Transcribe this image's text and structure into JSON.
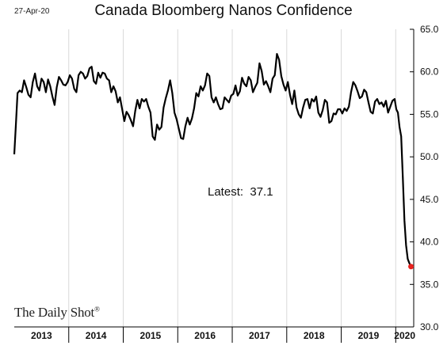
{
  "date_stamp": "27-Apr-20",
  "title": "Canada Bloomberg Nanos Confidence",
  "latest_label": "Latest:  37.1",
  "brand": "The Daily Shot",
  "brand_mark": "®",
  "colors": {
    "line": "#000000",
    "last_point": "#e8231f",
    "grid": "#d9d9d9",
    "axis": "#000000"
  },
  "chart_data": {
    "type": "line",
    "title": "Canada Bloomberg Nanos Confidence",
    "xlabel": "",
    "ylabel": "",
    "ylim": [
      30,
      65
    ],
    "y_ticks": [
      "30.0",
      "35.0",
      "40.0",
      "45.0",
      "50.0",
      "55.0",
      "60.0",
      "65.0"
    ],
    "x_range": [
      2013.0,
      2020.33
    ],
    "year_labels": [
      "2013",
      "2014",
      "2015",
      "2016",
      "2017",
      "2018",
      "2019",
      "2020"
    ],
    "grid": "vertical gridlines at year boundaries",
    "series": [
      {
        "values": [
          [
            2013.0,
            50.3
          ],
          [
            2013.03,
            53.8
          ],
          [
            2013.06,
            57.5
          ],
          [
            2013.1,
            57.8
          ],
          [
            2013.14,
            57.6
          ],
          [
            2013.18,
            59.0
          ],
          [
            2013.22,
            58.2
          ],
          [
            2013.26,
            57.3
          ],
          [
            2013.3,
            57.0
          ],
          [
            2013.34,
            58.8
          ],
          [
            2013.38,
            59.8
          ],
          [
            2013.42,
            58.3
          ],
          [
            2013.46,
            57.8
          ],
          [
            2013.5,
            59.2
          ],
          [
            2013.54,
            58.8
          ],
          [
            2013.58,
            57.6
          ],
          [
            2013.62,
            59.1
          ],
          [
            2013.66,
            58.3
          ],
          [
            2013.7,
            57.1
          ],
          [
            2013.74,
            56.1
          ],
          [
            2013.78,
            58.2
          ],
          [
            2013.82,
            59.4
          ],
          [
            2013.86,
            59.0
          ],
          [
            2013.9,
            58.5
          ],
          [
            2013.94,
            58.4
          ],
          [
            2013.98,
            58.8
          ],
          [
            2014.02,
            59.6
          ],
          [
            2014.06,
            59.2
          ],
          [
            2014.1,
            58.0
          ],
          [
            2014.14,
            57.6
          ],
          [
            2014.18,
            59.6
          ],
          [
            2014.22,
            60.0
          ],
          [
            2014.26,
            59.8
          ],
          [
            2014.3,
            59.2
          ],
          [
            2014.34,
            59.5
          ],
          [
            2014.38,
            60.4
          ],
          [
            2014.42,
            60.6
          ],
          [
            2014.46,
            58.9
          ],
          [
            2014.5,
            58.6
          ],
          [
            2014.54,
            59.9
          ],
          [
            2014.58,
            59.3
          ],
          [
            2014.62,
            59.9
          ],
          [
            2014.66,
            59.8
          ],
          [
            2014.7,
            59.2
          ],
          [
            2014.74,
            59.0
          ],
          [
            2014.78,
            57.6
          ],
          [
            2014.82,
            58.3
          ],
          [
            2014.86,
            57.7
          ],
          [
            2014.9,
            56.4
          ],
          [
            2014.94,
            57.0
          ],
          [
            2014.98,
            55.6
          ],
          [
            2015.02,
            54.2
          ],
          [
            2015.06,
            55.3
          ],
          [
            2015.1,
            54.9
          ],
          [
            2015.14,
            54.3
          ],
          [
            2015.18,
            53.6
          ],
          [
            2015.22,
            55.4
          ],
          [
            2015.26,
            56.7
          ],
          [
            2015.3,
            55.7
          ],
          [
            2015.34,
            56.8
          ],
          [
            2015.38,
            56.5
          ],
          [
            2015.42,
            56.8
          ],
          [
            2015.46,
            55.9
          ],
          [
            2015.5,
            55.2
          ],
          [
            2015.54,
            52.4
          ],
          [
            2015.58,
            52.0
          ],
          [
            2015.62,
            53.8
          ],
          [
            2015.66,
            53.2
          ],
          [
            2015.7,
            53.5
          ],
          [
            2015.74,
            55.8
          ],
          [
            2015.78,
            56.9
          ],
          [
            2015.82,
            57.8
          ],
          [
            2015.86,
            59.0
          ],
          [
            2015.9,
            57.5
          ],
          [
            2015.94,
            55.2
          ],
          [
            2015.98,
            54.4
          ],
          [
            2016.02,
            53.3
          ],
          [
            2016.06,
            52.2
          ],
          [
            2016.1,
            52.1
          ],
          [
            2016.14,
            53.6
          ],
          [
            2016.18,
            54.6
          ],
          [
            2016.22,
            53.8
          ],
          [
            2016.26,
            54.5
          ],
          [
            2016.3,
            55.7
          ],
          [
            2016.34,
            57.5
          ],
          [
            2016.38,
            57.1
          ],
          [
            2016.42,
            58.3
          ],
          [
            2016.46,
            57.8
          ],
          [
            2016.5,
            58.4
          ],
          [
            2016.54,
            59.8
          ],
          [
            2016.58,
            59.5
          ],
          [
            2016.62,
            57.0
          ],
          [
            2016.66,
            56.4
          ],
          [
            2016.7,
            57.0
          ],
          [
            2016.74,
            56.2
          ],
          [
            2016.78,
            55.6
          ],
          [
            2016.82,
            55.7
          ],
          [
            2016.86,
            57.0
          ],
          [
            2016.9,
            56.7
          ],
          [
            2016.94,
            56.4
          ],
          [
            2016.98,
            57.2
          ],
          [
            2017.02,
            57.4
          ],
          [
            2017.06,
            58.4
          ],
          [
            2017.1,
            57.2
          ],
          [
            2017.14,
            57.7
          ],
          [
            2017.18,
            59.3
          ],
          [
            2017.22,
            58.6
          ],
          [
            2017.26,
            58.3
          ],
          [
            2017.3,
            59.4
          ],
          [
            2017.34,
            59.0
          ],
          [
            2017.38,
            57.6
          ],
          [
            2017.42,
            58.2
          ],
          [
            2017.46,
            58.7
          ],
          [
            2017.5,
            61.0
          ],
          [
            2017.54,
            60.1
          ],
          [
            2017.58,
            58.5
          ],
          [
            2017.62,
            58.9
          ],
          [
            2017.66,
            58.3
          ],
          [
            2017.7,
            57.6
          ],
          [
            2017.74,
            59.2
          ],
          [
            2017.78,
            59.6
          ],
          [
            2017.82,
            62.1
          ],
          [
            2017.86,
            61.4
          ],
          [
            2017.9,
            59.5
          ],
          [
            2017.94,
            58.5
          ],
          [
            2017.98,
            57.8
          ],
          [
            2018.02,
            58.8
          ],
          [
            2018.06,
            57.3
          ],
          [
            2018.1,
            56.2
          ],
          [
            2018.14,
            57.8
          ],
          [
            2018.18,
            55.8
          ],
          [
            2018.22,
            55.0
          ],
          [
            2018.26,
            54.6
          ],
          [
            2018.3,
            55.8
          ],
          [
            2018.34,
            56.7
          ],
          [
            2018.38,
            56.8
          ],
          [
            2018.42,
            55.7
          ],
          [
            2018.46,
            56.8
          ],
          [
            2018.5,
            56.5
          ],
          [
            2018.54,
            57.1
          ],
          [
            2018.58,
            55.2
          ],
          [
            2018.62,
            54.7
          ],
          [
            2018.66,
            55.5
          ],
          [
            2018.7,
            56.7
          ],
          [
            2018.74,
            56.4
          ],
          [
            2018.78,
            54.0
          ],
          [
            2018.82,
            54.2
          ],
          [
            2018.86,
            55.1
          ],
          [
            2018.9,
            55.0
          ],
          [
            2018.94,
            55.6
          ],
          [
            2018.98,
            55.6
          ],
          [
            2019.02,
            55.1
          ],
          [
            2019.06,
            55.7
          ],
          [
            2019.1,
            55.4
          ],
          [
            2019.14,
            55.9
          ],
          [
            2019.18,
            57.6
          ],
          [
            2019.22,
            58.8
          ],
          [
            2019.26,
            58.4
          ],
          [
            2019.3,
            57.7
          ],
          [
            2019.34,
            56.9
          ],
          [
            2019.38,
            57.1
          ],
          [
            2019.42,
            57.9
          ],
          [
            2019.46,
            57.6
          ],
          [
            2019.5,
            56.4
          ],
          [
            2019.54,
            55.3
          ],
          [
            2019.58,
            55.1
          ],
          [
            2019.62,
            56.5
          ],
          [
            2019.66,
            56.8
          ],
          [
            2019.7,
            56.2
          ],
          [
            2019.74,
            56.4
          ],
          [
            2019.78,
            55.9
          ],
          [
            2019.82,
            56.6
          ],
          [
            2019.86,
            55.2
          ],
          [
            2019.9,
            55.9
          ],
          [
            2019.94,
            56.6
          ],
          [
            2019.98,
            56.8
          ],
          [
            2020.01,
            55.6
          ],
          [
            2020.04,
            55.2
          ],
          [
            2020.07,
            53.5
          ],
          [
            2020.1,
            52.4
          ],
          [
            2020.13,
            47.6
          ],
          [
            2020.16,
            42.5
          ],
          [
            2020.19,
            39.6
          ],
          [
            2020.22,
            38.0
          ],
          [
            2020.25,
            37.5
          ],
          [
            2020.28,
            37.1
          ]
        ]
      }
    ],
    "last_point": [
      2020.28,
      37.1
    ]
  }
}
